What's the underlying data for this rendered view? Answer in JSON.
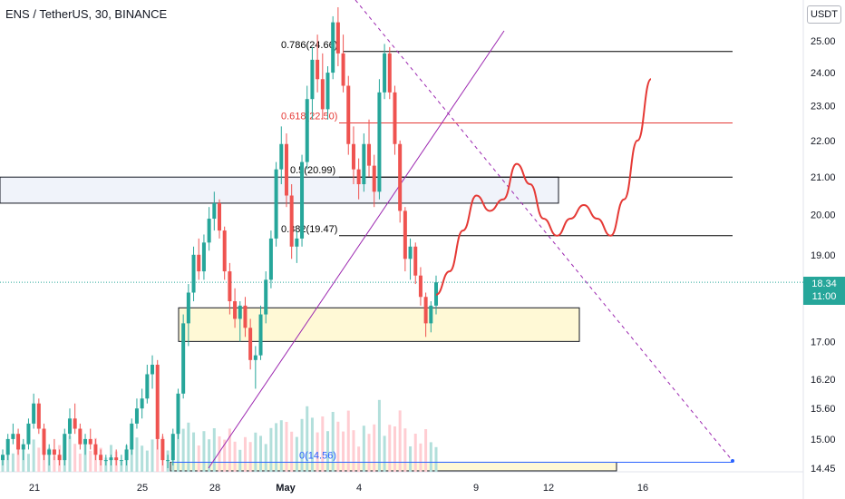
{
  "header": {
    "title": "ENS / TetherUS, 30, BINANCE"
  },
  "currency_badge": "USDT",
  "last_price": {
    "value": "18.34",
    "countdown": "11:00"
  },
  "chart_data": {
    "type": "candlestick",
    "symbol": "ENS / TetherUS",
    "interval": "30",
    "exchange": "BINANCE",
    "y_axis": {
      "ticks": [
        25.0,
        24.0,
        23.0,
        22.0,
        21.0,
        20.0,
        19.0,
        18.34,
        17.0,
        16.2,
        15.6,
        15.0,
        14.45
      ],
      "tick_labels": [
        "25.00",
        "24.00",
        "23.00",
        "22.00",
        "21.00",
        "20.00",
        "19.00",
        "17.00",
        "16.20",
        "15.60",
        "15.00",
        "14.45"
      ],
      "range": [
        14.35,
        26.1
      ],
      "scale": "log"
    },
    "x_axis": {
      "tick_labels": [
        "21",
        "25",
        "28",
        "May",
        "4",
        "9",
        "12",
        "16"
      ]
    },
    "fib_levels": [
      {
        "label": "0.786(24.66)",
        "price": 24.66,
        "color": "#000000"
      },
      {
        "label": "0.618(22.50)",
        "price": 22.5,
        "color": "#e53935"
      },
      {
        "label": "0.5(20.99)",
        "price": 20.99,
        "color": "#000000"
      },
      {
        "label": "0.382(19.47)",
        "price": 19.47,
        "color": "#000000"
      },
      {
        "label": "0(14.56)",
        "price": 14.56,
        "color": "#2962ff"
      }
    ],
    "zones": [
      {
        "name": "resistance-zone",
        "price_top": 20.99,
        "price_bottom": 20.3,
        "fill": "#f0f3fa"
      },
      {
        "name": "support-zone",
        "price_top": 17.75,
        "price_bottom": 17.0,
        "fill": "#fff9d6"
      },
      {
        "name": "base-zone",
        "price_top": 14.56,
        "price_bottom": 14.4,
        "fill": "#fff9d6"
      }
    ],
    "candles": [
      [
        14.6,
        14.8,
        14.5,
        14.7
      ],
      [
        14.7,
        15.1,
        14.6,
        15.0
      ],
      [
        15.0,
        15.3,
        14.9,
        15.1
      ],
      [
        15.1,
        15.2,
        14.7,
        14.8
      ],
      [
        14.8,
        15.0,
        14.6,
        14.9
      ],
      [
        14.9,
        15.4,
        14.8,
        15.3
      ],
      [
        15.3,
        15.9,
        15.2,
        15.7
      ],
      [
        15.7,
        15.8,
        15.1,
        15.2
      ],
      [
        15.2,
        15.3,
        14.6,
        14.7
      ],
      [
        14.7,
        14.9,
        14.5,
        14.8
      ],
      [
        14.8,
        15.0,
        14.6,
        14.7
      ],
      [
        14.7,
        14.8,
        14.5,
        14.6
      ],
      [
        14.6,
        15.2,
        14.5,
        15.1
      ],
      [
        15.1,
        15.6,
        15.0,
        15.4
      ],
      [
        15.4,
        15.7,
        15.1,
        15.2
      ],
      [
        15.2,
        15.3,
        14.8,
        14.9
      ],
      [
        14.9,
        15.1,
        14.7,
        15.0
      ],
      [
        15.0,
        15.2,
        14.8,
        14.9
      ],
      [
        14.9,
        15.0,
        14.6,
        14.7
      ],
      [
        14.7,
        14.8,
        14.5,
        14.6
      ],
      [
        14.6,
        14.7,
        14.5,
        14.6
      ],
      [
        14.6,
        14.7,
        14.5,
        14.65
      ],
      [
        14.65,
        14.8,
        14.5,
        14.6
      ],
      [
        14.6,
        14.7,
        14.5,
        14.6
      ],
      [
        14.6,
        14.9,
        14.5,
        14.8
      ],
      [
        14.8,
        15.4,
        14.7,
        15.3
      ],
      [
        15.3,
        15.8,
        15.2,
        15.6
      ],
      [
        15.6,
        16.0,
        15.4,
        15.8
      ],
      [
        15.8,
        16.5,
        15.7,
        16.3
      ],
      [
        16.3,
        16.7,
        16.0,
        16.5
      ],
      [
        16.5,
        16.6,
        14.8,
        15.0
      ],
      [
        15.0,
        15.1,
        14.5,
        14.6
      ],
      [
        14.6,
        14.7,
        14.45,
        14.6
      ],
      [
        14.6,
        15.2,
        14.5,
        15.1
      ],
      [
        15.1,
        16.0,
        15.0,
        15.9
      ],
      [
        15.9,
        17.6,
        15.8,
        17.4
      ],
      [
        17.4,
        18.3,
        16.9,
        18.1
      ],
      [
        18.1,
        19.2,
        17.9,
        19.0
      ],
      [
        19.0,
        19.4,
        18.4,
        18.6
      ],
      [
        18.6,
        19.5,
        18.4,
        19.3
      ],
      [
        19.3,
        20.2,
        19.1,
        19.9
      ],
      [
        19.9,
        20.6,
        19.6,
        20.3
      ],
      [
        20.3,
        20.4,
        19.4,
        19.6
      ],
      [
        19.6,
        19.7,
        18.4,
        18.6
      ],
      [
        18.6,
        18.8,
        17.6,
        17.9
      ],
      [
        17.9,
        18.2,
        17.3,
        17.5
      ],
      [
        17.5,
        17.9,
        17.0,
        17.8
      ],
      [
        17.8,
        18.0,
        17.1,
        17.3
      ],
      [
        17.3,
        17.5,
        16.4,
        16.6
      ],
      [
        16.6,
        16.9,
        16.0,
        16.7
      ],
      [
        16.7,
        17.8,
        16.6,
        17.6
      ],
      [
        17.6,
        18.6,
        17.4,
        18.4
      ],
      [
        18.4,
        19.6,
        18.2,
        19.4
      ],
      [
        19.4,
        21.4,
        19.2,
        21.2
      ],
      [
        21.2,
        22.4,
        20.8,
        21.9
      ],
      [
        21.9,
        22.2,
        20.2,
        20.5
      ],
      [
        20.5,
        20.8,
        18.9,
        19.2
      ],
      [
        19.2,
        19.6,
        18.8,
        19.4
      ],
      [
        19.4,
        21.6,
        19.2,
        21.4
      ],
      [
        21.4,
        23.6,
        21.2,
        23.2
      ],
      [
        23.2,
        24.8,
        22.6,
        24.4
      ],
      [
        24.4,
        25.2,
        23.4,
        23.8
      ],
      [
        23.8,
        24.6,
        22.6,
        22.9
      ],
      [
        22.9,
        24.2,
        22.6,
        24.0
      ],
      [
        24.0,
        25.8,
        23.8,
        25.6
      ],
      [
        25.6,
        26.1,
        24.2,
        24.6
      ],
      [
        24.6,
        25.2,
        23.4,
        23.6
      ],
      [
        23.6,
        23.9,
        21.6,
        21.9
      ],
      [
        21.9,
        22.4,
        20.8,
        21.2
      ],
      [
        21.2,
        21.5,
        20.4,
        20.8
      ],
      [
        20.8,
        22.2,
        20.6,
        21.9
      ],
      [
        21.9,
        22.6,
        21.0,
        21.3
      ],
      [
        21.3,
        21.6,
        20.2,
        20.6
      ],
      [
        20.6,
        23.8,
        20.4,
        23.4
      ],
      [
        23.4,
        24.9,
        23.2,
        24.6
      ],
      [
        24.6,
        24.8,
        23.2,
        23.4
      ],
      [
        23.4,
        23.6,
        21.6,
        21.9
      ],
      [
        21.9,
        22.0,
        19.8,
        20.1
      ],
      [
        20.1,
        20.2,
        18.6,
        18.9
      ],
      [
        18.9,
        19.4,
        18.4,
        19.2
      ],
      [
        19.2,
        19.3,
        18.3,
        18.5
      ],
      [
        18.5,
        18.7,
        17.8,
        18.0
      ],
      [
        18.0,
        18.1,
        17.1,
        17.4
      ],
      [
        17.4,
        17.9,
        17.2,
        17.8
      ],
      [
        17.8,
        18.5,
        17.6,
        18.34
      ]
    ],
    "projection": {
      "color": "#e53935",
      "path_prices": [
        18.05,
        18.6,
        19.6,
        20.5,
        20.1,
        20.4,
        21.35,
        20.8,
        19.9,
        19.47,
        19.9,
        20.25,
        19.9,
        19.47,
        20.4,
        22.0,
        23.8
      ]
    },
    "trendlines": [
      {
        "name": "ascending-support",
        "color": "#9c27b0",
        "style": "solid"
      },
      {
        "name": "descending-resistance",
        "color": "#9c27b0",
        "style": "dashed"
      }
    ],
    "volume_colors": {
      "up": "#b2dfdb",
      "down": "#ffcdd2"
    }
  }
}
